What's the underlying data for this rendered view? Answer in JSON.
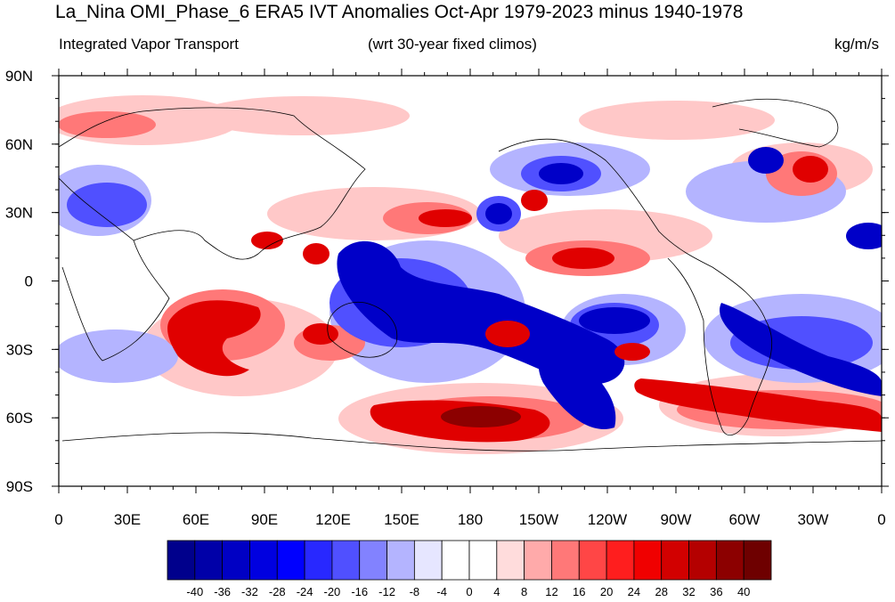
{
  "title": "La_Nina OMI_Phase_6 ERA5 IVT Anomalies Oct-Apr 1979-2023 minus 1940-1978",
  "subtitle_left": "Integrated Vapor Transport",
  "subtitle_center": "(wrt 30-year fixed climos)",
  "subtitle_right": "kg/m/s",
  "lat_labels": [
    "90N",
    "60N",
    "30N",
    "0",
    "30S",
    "60S",
    "90S"
  ],
  "lon_labels": [
    "0",
    "30E",
    "60E",
    "90E",
    "120E",
    "150E",
    "180",
    "150W",
    "120W",
    "90W",
    "60W",
    "30W",
    "0"
  ],
  "colorbar": {
    "labels": [
      "-40",
      "-36",
      "-32",
      "-28",
      "-24",
      "-20",
      "-16",
      "-12",
      "-8",
      "-4",
      "0",
      "4",
      "8",
      "12",
      "16",
      "20",
      "24",
      "28",
      "32",
      "36",
      "40"
    ],
    "colors": [
      "#00008c",
      "#0000a8",
      "#0000c4",
      "#0000e0",
      "#0000ff",
      "#2828ff",
      "#5050ff",
      "#8282ff",
      "#b4b4ff",
      "#e6e6ff",
      "#ffffff",
      "#ffffff",
      "#ffdcdc",
      "#ffaaaa",
      "#ff7878",
      "#ff4646",
      "#ff1e1e",
      "#f00000",
      "#d20000",
      "#b40000",
      "#8c0000",
      "#6e0000"
    ]
  },
  "colors": {
    "strong_neg": "#0000c8",
    "mid_neg": "#4040ff",
    "weak_neg": "#b4b4ff",
    "weak_pos": "#ffc8c8",
    "mid_pos": "#ff4646",
    "strong_pos": "#c80000",
    "darkest_pos": "#8c0000",
    "coastline": "#000000"
  }
}
